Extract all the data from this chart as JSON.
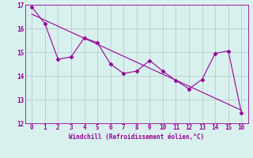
{
  "x_data": [
    0,
    1,
    2,
    3,
    4,
    5,
    6,
    7,
    8,
    9,
    10,
    11,
    12,
    13,
    14,
    15,
    16
  ],
  "y_data": [
    16.9,
    16.2,
    14.7,
    14.8,
    15.6,
    15.4,
    14.5,
    14.1,
    14.2,
    14.65,
    14.2,
    13.8,
    13.45,
    13.85,
    14.95,
    15.05,
    12.45
  ],
  "trend_x": [
    0,
    16
  ],
  "trend_y": [
    16.6,
    12.55
  ],
  "line_color": "#990099",
  "bg_color": "#d8f0ee",
  "grid_color": "#b0c8c4",
  "xlabel": "Windchill (Refroidissement éolien,°C)",
  "xlim": [
    -0.5,
    16.5
  ],
  "ylim": [
    12,
    17
  ],
  "yticks": [
    12,
    13,
    14,
    15,
    16,
    17
  ],
  "xticks": [
    0,
    1,
    2,
    3,
    4,
    5,
    6,
    7,
    8,
    9,
    10,
    11,
    12,
    13,
    14,
    15,
    16
  ],
  "marker": "D",
  "marker_size": 2.5,
  "line_width": 0.8,
  "tick_fontsize": 5.5,
  "xlabel_fontsize": 5.5
}
